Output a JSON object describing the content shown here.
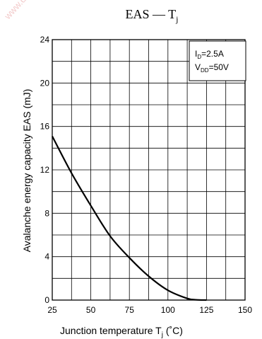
{
  "watermark": "www.datasheet.com.cn...silicon.pa...",
  "chart_data": {
    "type": "line",
    "title": {
      "main": "EAS — T",
      "sub": "j"
    },
    "xlabel": {
      "main": "Junction temperature   T",
      "sub": "j",
      "unit": "  (˚C)"
    },
    "ylabel": {
      "main": "Avalanche energy capacity   EAS   (mJ)"
    },
    "xlim": [
      25,
      150
    ],
    "ylim": [
      0,
      24
    ],
    "x_ticks": [
      25,
      50,
      75,
      100,
      125,
      150
    ],
    "x_tick_labels": [
      "25",
      "50",
      "75",
      "100",
      "125",
      "150"
    ],
    "y_ticks": [
      0,
      4,
      8,
      12,
      16,
      20,
      24
    ],
    "y_tick_labels": [
      "0",
      "4",
      "8",
      "12",
      "16",
      "20",
      "24"
    ],
    "grid": true,
    "legend_position": "top-right",
    "conditions": [
      {
        "main": "I",
        "sub": "D",
        "rest": "=2.5A"
      },
      {
        "main": "V",
        "sub": "DD",
        "rest": "=50V"
      }
    ],
    "series": [
      {
        "x": [
          25,
          37.5,
          50,
          62.5,
          75,
          87.5,
          100,
          112.5,
          118,
          125
        ],
        "y": [
          15.1,
          11.7,
          8.7,
          5.9,
          3.9,
          2.2,
          0.9,
          0.15,
          0.03,
          0
        ]
      }
    ]
  }
}
